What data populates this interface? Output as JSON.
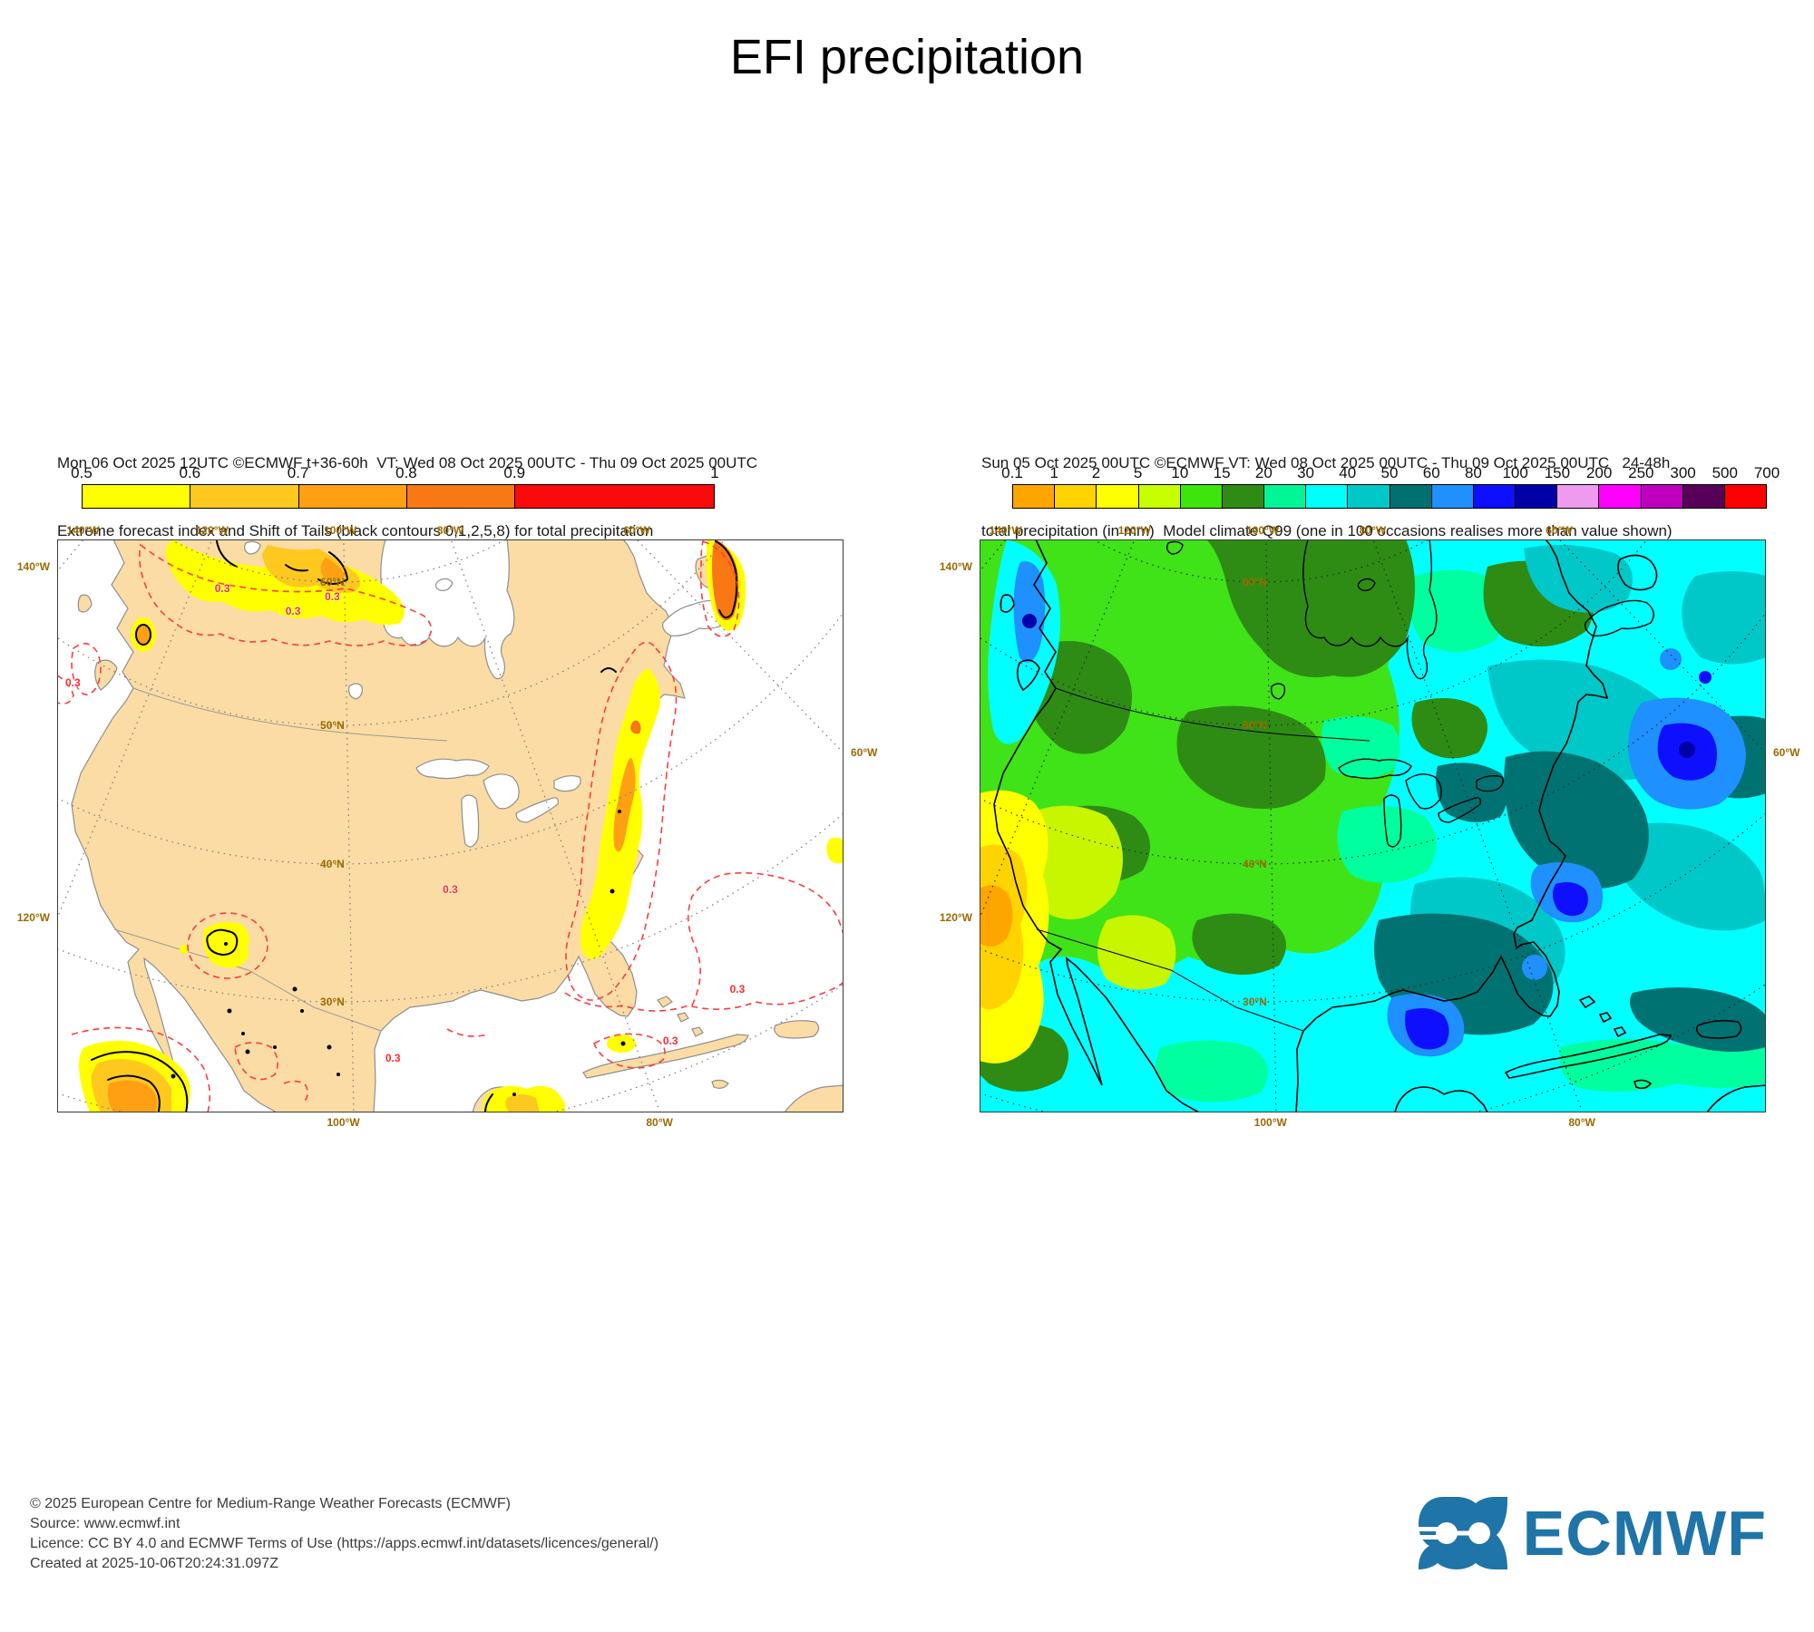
{
  "title": "EFI precipitation",
  "left_panel": {
    "header_line1": "Mon 06 Oct 2025 12UTC ©ECMWF t+36-60h  VT: Wed 08 Oct 2025 00UTC - Thu 09 Oct 2025 00UTC",
    "header_line2": "Extreme forecast index and Shift of Tails (black contours 0,1,2,5,8) for total precipitation",
    "legend": {
      "labels": [
        "0.5",
        "0.6",
        "0.7",
        "0.8",
        "0.9",
        "1"
      ],
      "colors": [
        "#FFFF00",
        "#FFC81E",
        "#FFA014",
        "#F87814",
        "#FA0A0A"
      ],
      "widths": [
        1,
        1,
        1,
        1,
        1.85
      ]
    },
    "axis": {
      "top": [
        "140°W",
        "120°W",
        "100°W",
        "80°W",
        "60°W"
      ],
      "left": [
        "140°W",
        "120°W"
      ],
      "right": [
        "60°W"
      ],
      "bottom": [
        "100°W",
        "80°W"
      ],
      "lat": [
        "60°N",
        "50°N",
        "40°N",
        "30°N"
      ]
    },
    "contour_label": "0.3"
  },
  "right_panel": {
    "header_line1": "Sun 05 Oct 2025 00UTC ©ECMWF VT: Wed 08 Oct 2025 00UTC - Thu 09 Oct 2025 00UTC   24-48h",
    "header_line2": "total precipitation (in mm)  Model climate Q99 (one in 100 occasions realises more than value shown)",
    "legend": {
      "labels": [
        "0.1",
        "1",
        "2",
        "5",
        "10",
        "15",
        "20",
        "30",
        "40",
        "50",
        "60",
        "80",
        "100",
        "150",
        "200",
        "250",
        "300",
        "500",
        "700"
      ],
      "colors": [
        "#FFA500",
        "#FFD200",
        "#FFFF00",
        "#C8FF00",
        "#3CE60A",
        "#2E8B14",
        "#00F596",
        "#00FFFF",
        "#00C8C8",
        "#007070",
        "#1E90FF",
        "#0F0FFF",
        "#0000A8",
        "#EE9AEE",
        "#FF00FF",
        "#BE00BE",
        "#570057",
        "#FF0000"
      ]
    },
    "axis": {
      "top": [
        "140°W",
        "120°W",
        "100°W",
        "80°W",
        "60°W"
      ],
      "left": [
        "140°W",
        "120°W"
      ],
      "right": [
        "60°W"
      ],
      "bottom": [
        "100°W",
        "80°W"
      ],
      "lat": [
        "60°N",
        "50°N",
        "40°N",
        "30°N"
      ]
    }
  },
  "footer": {
    "line1": "© 2025 European Centre for Medium-Range Weather Forecasts (ECMWF)",
    "line2": "Source: www.ecmwf.int",
    "line3": "Licence: CC BY 4.0 and ECMWF Terms of Use (https://apps.ecmwf.int/datasets/licences/general/)",
    "line4": "Created at 2025-10-06T20:24:31.097Z"
  },
  "logo": {
    "text": "ECMWF",
    "color": "#1F74A8"
  }
}
